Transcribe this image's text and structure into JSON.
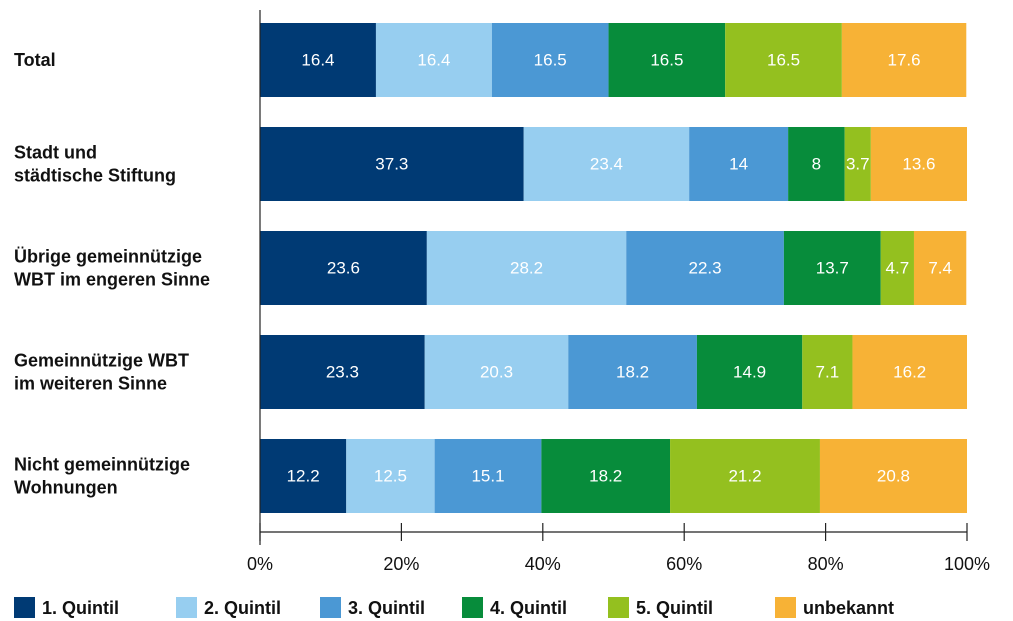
{
  "chart_data": {
    "type": "bar",
    "orientation": "horizontal",
    "stacked": true,
    "categories": [
      [
        "Total"
      ],
      [
        "Stadt und",
        "städtische Stiftung"
      ],
      [
        "Übrige gemeinnützige",
        "WBT im engeren Sinne"
      ],
      [
        "Gemeinnützige WBT",
        "im weiteren Sinne"
      ],
      [
        "Nicht gemeinnützige",
        "Wohnungen"
      ]
    ],
    "series": [
      {
        "name": "1. Quintil",
        "color": "#003a74",
        "text_color": "#ffffff",
        "values": [
          16.4,
          37.3,
          23.6,
          23.3,
          12.2
        ]
      },
      {
        "name": "2. Quintil",
        "color": "#97cef0",
        "text_color": "#ffffff",
        "values": [
          16.4,
          23.4,
          28.2,
          20.3,
          12.5
        ]
      },
      {
        "name": "3. Quintil",
        "color": "#4b98d4",
        "text_color": "#ffffff",
        "values": [
          16.5,
          14,
          22.3,
          18.2,
          15.1
        ]
      },
      {
        "name": "4. Quintil",
        "color": "#078c3b",
        "text_color": "#ffffff",
        "values": [
          16.5,
          8,
          13.7,
          14.9,
          18.2
        ]
      },
      {
        "name": "5. Quintil",
        "color": "#94c01f",
        "text_color": "#ffffff",
        "values": [
          16.5,
          3.7,
          4.7,
          7.1,
          21.2
        ]
      },
      {
        "name": "unbekannt",
        "color": "#f7b236",
        "text_color": "#ffffff",
        "values": [
          17.6,
          13.6,
          7.4,
          16.2,
          20.8
        ]
      }
    ],
    "xlim": [
      0,
      100
    ],
    "xticks": [
      "0%",
      "20%",
      "40%",
      "60%",
      "80%",
      "100%"
    ],
    "legend_position": "bottom",
    "grid": false
  }
}
